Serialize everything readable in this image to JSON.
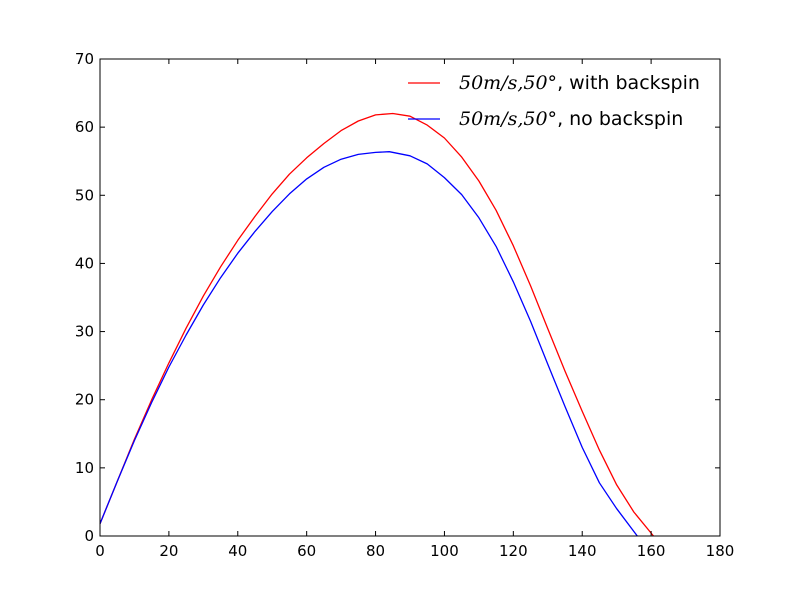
{
  "chart_data": {
    "type": "line",
    "title": "",
    "xlabel": "",
    "ylabel": "",
    "xlim": [
      0,
      180
    ],
    "ylim": [
      0,
      70
    ],
    "x_ticks": [
      0,
      20,
      40,
      60,
      80,
      100,
      120,
      140,
      160,
      180
    ],
    "y_ticks": [
      0,
      10,
      20,
      30,
      40,
      50,
      60,
      70
    ],
    "x_tick_labels": [
      "0",
      "20",
      "40",
      "60",
      "80",
      "100",
      "120",
      "140",
      "160",
      "180"
    ],
    "y_tick_labels": [
      "0",
      "10",
      "20",
      "30",
      "40",
      "50",
      "60",
      "70"
    ],
    "grid": false,
    "legend_position": "top-right",
    "series": [
      {
        "name": "50m/s,50°, with backspin",
        "name_math": "50m/s,50°",
        "name_text": ", with backspin",
        "color": "#ff0000",
        "x": [
          0,
          5,
          10,
          15,
          20,
          25,
          30,
          35,
          40,
          45,
          50,
          55,
          60,
          65,
          70,
          75,
          80,
          85,
          90,
          95,
          100,
          105,
          110,
          115,
          120,
          125,
          130,
          135,
          140,
          145,
          150,
          155,
          160.7
        ],
        "y": [
          1.8,
          8.0,
          14.2,
          20.0,
          25.4,
          30.5,
          35.2,
          39.5,
          43.4,
          46.9,
          50.2,
          53.1,
          55.5,
          57.6,
          59.5,
          60.9,
          61.8,
          62.0,
          61.6,
          60.3,
          58.4,
          55.6,
          52.1,
          47.8,
          42.6,
          36.7,
          30.4,
          24.2,
          18.3,
          12.6,
          7.5,
          3.5,
          0
        ]
      },
      {
        "name": "50m/s,50°, no backspin",
        "name_math": "50m/s,50°",
        "name_text": ", no backspin",
        "color": "#0000ff",
        "x": [
          0,
          5,
          10,
          15,
          20,
          25,
          30,
          35,
          40,
          45,
          50,
          55,
          60,
          65,
          70,
          75,
          80,
          84,
          90,
          95,
          100,
          105,
          110,
          115,
          120,
          125,
          130,
          135,
          140,
          145,
          150,
          156
        ],
        "y": [
          1.8,
          8.0,
          14.0,
          19.6,
          24.8,
          29.5,
          33.9,
          37.9,
          41.5,
          44.7,
          47.6,
          50.2,
          52.4,
          54.1,
          55.3,
          56.0,
          56.3,
          56.4,
          55.8,
          54.6,
          52.6,
          50.1,
          46.7,
          42.5,
          37.3,
          31.5,
          25.2,
          19.0,
          13.0,
          7.8,
          4.0,
          0
        ]
      }
    ]
  }
}
